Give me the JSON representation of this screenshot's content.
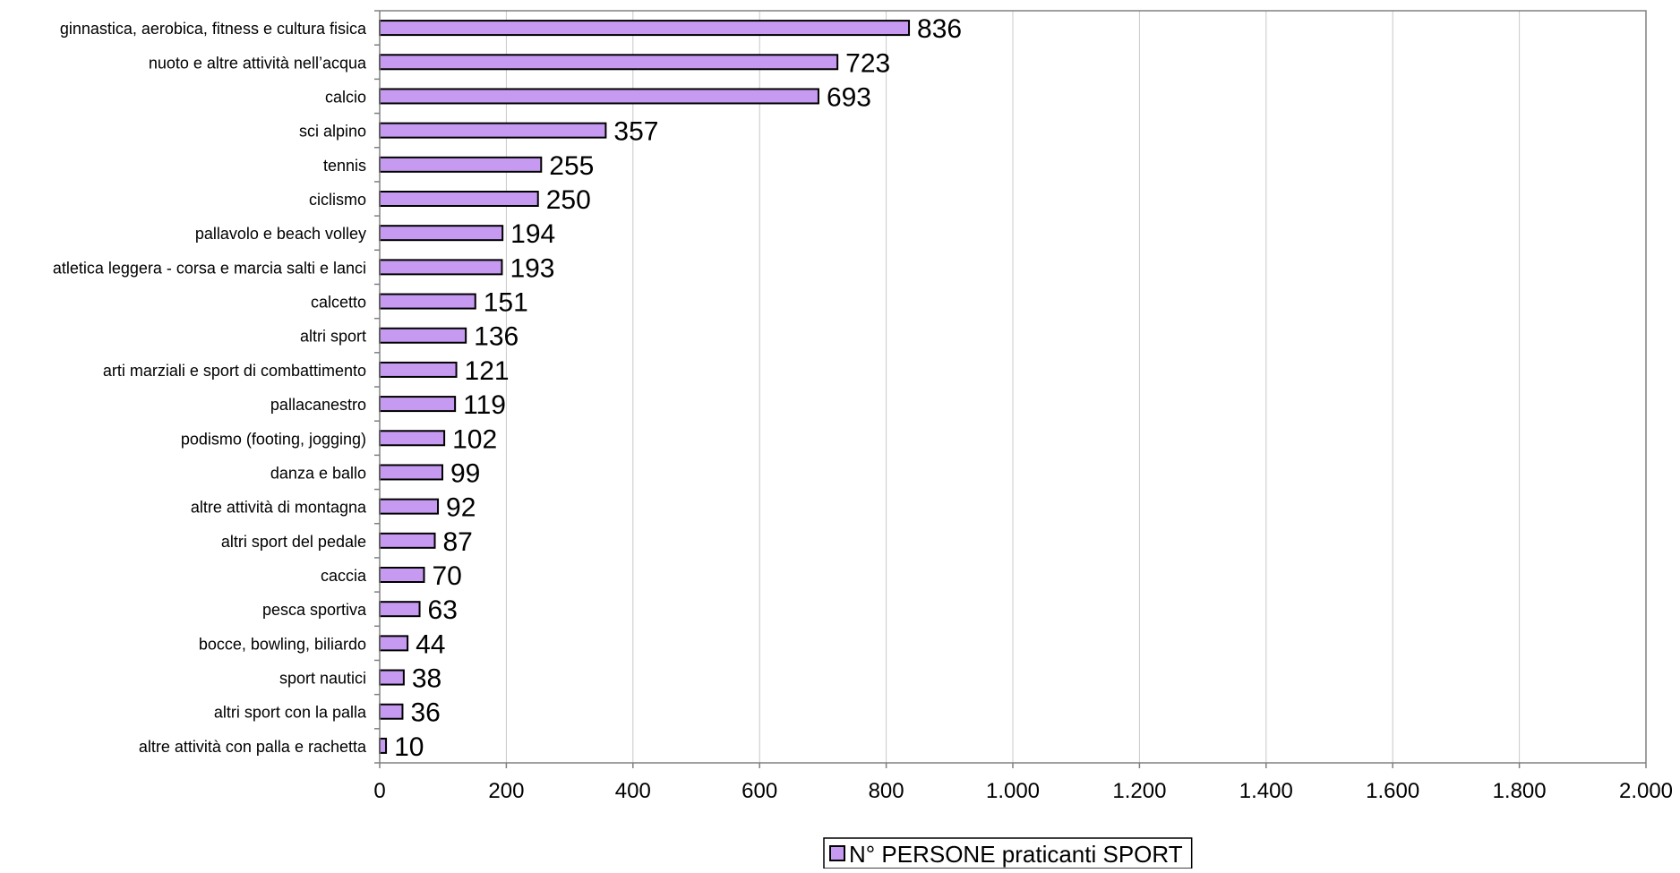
{
  "chart_data": {
    "type": "bar",
    "orientation": "horizontal",
    "categories": [
      "ginnastica, aerobica, fitness e cultura fisica",
      "nuoto e altre attività nell’acqua",
      "calcio",
      "sci alpino",
      "tennis",
      "ciclismo",
      "pallavolo e beach volley",
      "atletica leggera - corsa e marcia salti e lanci",
      "calcetto",
      "altri sport",
      "arti marziali e sport di combattimento",
      "pallacanestro",
      "podismo (footing, jogging)",
      "danza e ballo",
      "altre attività di montagna",
      "altri sport del pedale",
      "caccia",
      "pesca sportiva",
      "bocce, bowling, biliardo",
      "sport nautici",
      "altri sport con la palla",
      "altre attività con palla e rachetta"
    ],
    "series": [
      {
        "name": "N° PERSONE praticanti SPORT",
        "values": [
          836,
          723,
          693,
          357,
          255,
          250,
          194,
          193,
          151,
          136,
          121,
          119,
          102,
          99,
          92,
          87,
          70,
          63,
          44,
          38,
          36,
          10
        ]
      }
    ],
    "xlim": [
      0,
      2000
    ],
    "xticks": [
      0,
      200,
      400,
      600,
      800,
      1000,
      1200,
      1400,
      1600,
      1800,
      2000
    ],
    "xtick_labels": [
      "0",
      "200",
      "400",
      "600",
      "800",
      "1.000",
      "1.200",
      "1.400",
      "1.600",
      "1.800",
      "2.000"
    ],
    "data_labels": [
      "836",
      "723",
      "693",
      "357",
      "255",
      "250",
      "194",
      "193",
      "151",
      "136",
      "121",
      "119",
      "102",
      "99",
      "92",
      "87",
      "70",
      "63",
      "44",
      "38",
      "36",
      "10"
    ],
    "grid": "vertical",
    "legend_position": "bottom",
    "title": "",
    "xlabel": "",
    "ylabel": "",
    "colors": {
      "bar_fill": "#c79af2",
      "bar_stroke": "#000000",
      "grid": "#c8c8c8",
      "axis": "#808080"
    }
  }
}
